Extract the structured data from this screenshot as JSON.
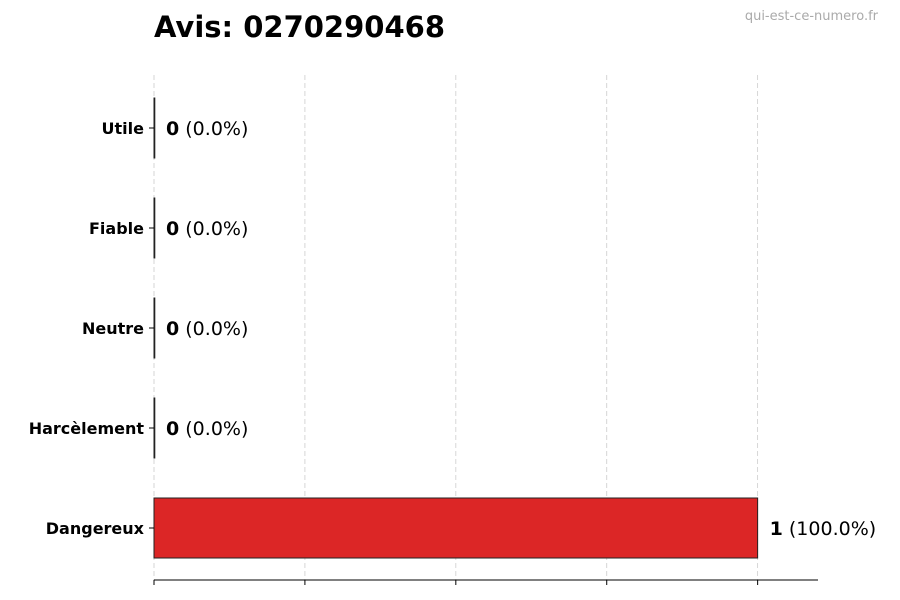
{
  "chart_data": {
    "type": "bar",
    "orientation": "horizontal",
    "title": "Avis: 0270290468",
    "watermark": "qui-est-ce-numero.fr",
    "categories": [
      "Utile",
      "Fiable",
      "Neutre",
      "Harcèlement",
      "Dangereux"
    ],
    "values": [
      0,
      0,
      0,
      0,
      1
    ],
    "data_labels": [
      {
        "count": "0",
        "pct": "(0.0%)"
      },
      {
        "count": "0",
        "pct": "(0.0%)"
      },
      {
        "count": "0",
        "pct": "(0.0%)"
      },
      {
        "count": "0",
        "pct": "(0.0%)"
      },
      {
        "count": "1",
        "pct": "(100.0%)"
      }
    ],
    "colors": [
      "#dc2626",
      "#dc2626",
      "#dc2626",
      "#dc2626",
      "#dc2626"
    ],
    "xlim": [
      0,
      1.1
    ],
    "xticks": [
      0,
      0.25,
      0.5,
      0.75,
      1.0
    ],
    "xtick_labels_shown": false,
    "grid": "x-dashed",
    "xlabel": "",
    "ylabel": ""
  }
}
